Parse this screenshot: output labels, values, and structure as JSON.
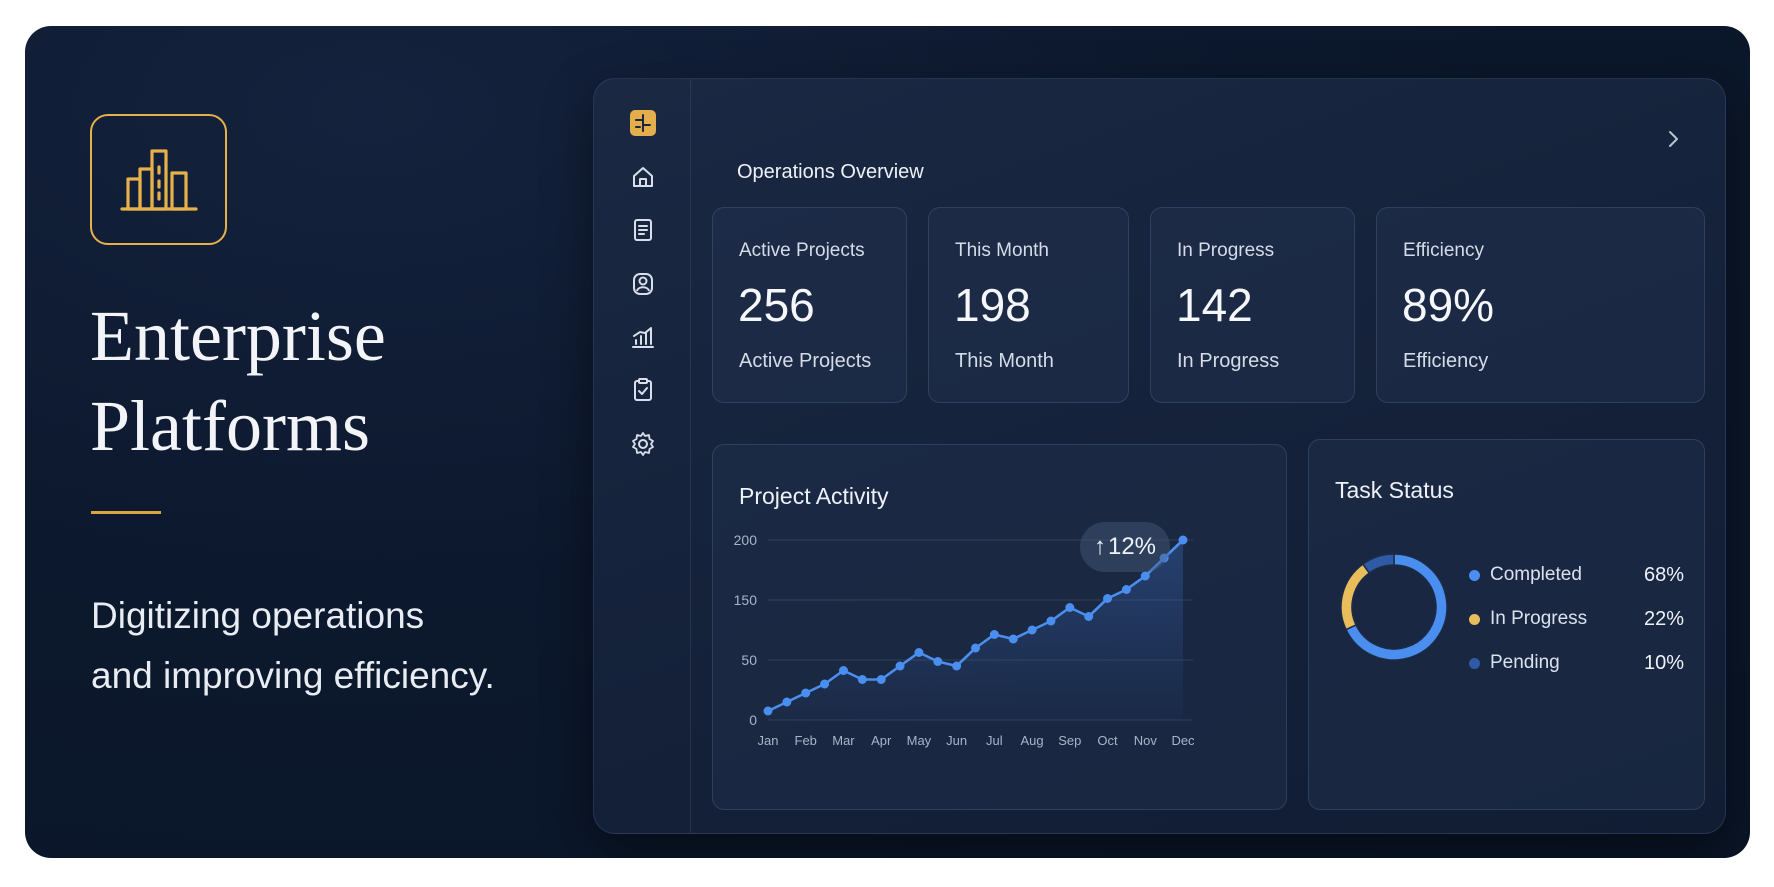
{
  "hero": {
    "title_line1": "Enterprise",
    "title_line2": "Platforms",
    "subtitle_line1": "Digitizing operations",
    "subtitle_line2": "and improving efficiency.",
    "logo_icon": "building-chart-icon",
    "accent_color": "#e6b04a"
  },
  "sidebar": {
    "items": [
      {
        "icon": "app-logo-icon"
      },
      {
        "icon": "home-icon"
      },
      {
        "icon": "document-icon"
      },
      {
        "icon": "users-icon"
      },
      {
        "icon": "analytics-icon"
      },
      {
        "icon": "clipboard-check-icon"
      },
      {
        "icon": "gear-icon"
      }
    ]
  },
  "header": {
    "title": "Operations Overview",
    "next_icon": "chevron-right-icon"
  },
  "stats": [
    {
      "label": "Active Projects",
      "value": "256",
      "footer": "Active Projects"
    },
    {
      "label": "This Month",
      "value": "198",
      "footer": "This Month"
    },
    {
      "label": "In Progress",
      "value": "142",
      "footer": "In Progress"
    },
    {
      "label": "Efficiency",
      "value": "89%",
      "footer": "Efficiency"
    }
  ],
  "activity": {
    "title": "Project Activity",
    "badge": "12%",
    "badge_icon": "arrow-up-icon",
    "line_color": "#4a8ef0"
  },
  "chart_data": {
    "type": "line",
    "categories": [
      "Jan",
      "Feb",
      "Mar",
      "Apr",
      "May",
      "Jun",
      "Jul",
      "Aug",
      "Sep",
      "Oct",
      "Nov",
      "Dec"
    ],
    "x": [
      0,
      0.5,
      1,
      1.5,
      2,
      2.5,
      3,
      3.5,
      4,
      4.5,
      5,
      5.5,
      6,
      6.5,
      7,
      7.5,
      8,
      8.5,
      9,
      9.5,
      10,
      10.5,
      11
    ],
    "values": [
      10,
      20,
      30,
      40,
      55,
      45,
      45,
      60,
      75,
      65,
      60,
      80,
      95,
      90,
      100,
      110,
      125,
      115,
      135,
      145,
      160,
      180,
      200
    ],
    "yticks": [
      "200",
      "150",
      "50",
      "0"
    ],
    "ylim": [
      0,
      200
    ],
    "grid": true
  },
  "tasks": {
    "title": "Task Status",
    "items": [
      {
        "name": "Completed",
        "pct": "68%",
        "value": 68,
        "color": "#4a8ef0"
      },
      {
        "name": "In Progress",
        "pct": "22%",
        "value": 22,
        "color": "#e8be5c"
      },
      {
        "name": "Pending",
        "pct": "10%",
        "value": 10,
        "color": "#2f5aa6"
      }
    ]
  }
}
